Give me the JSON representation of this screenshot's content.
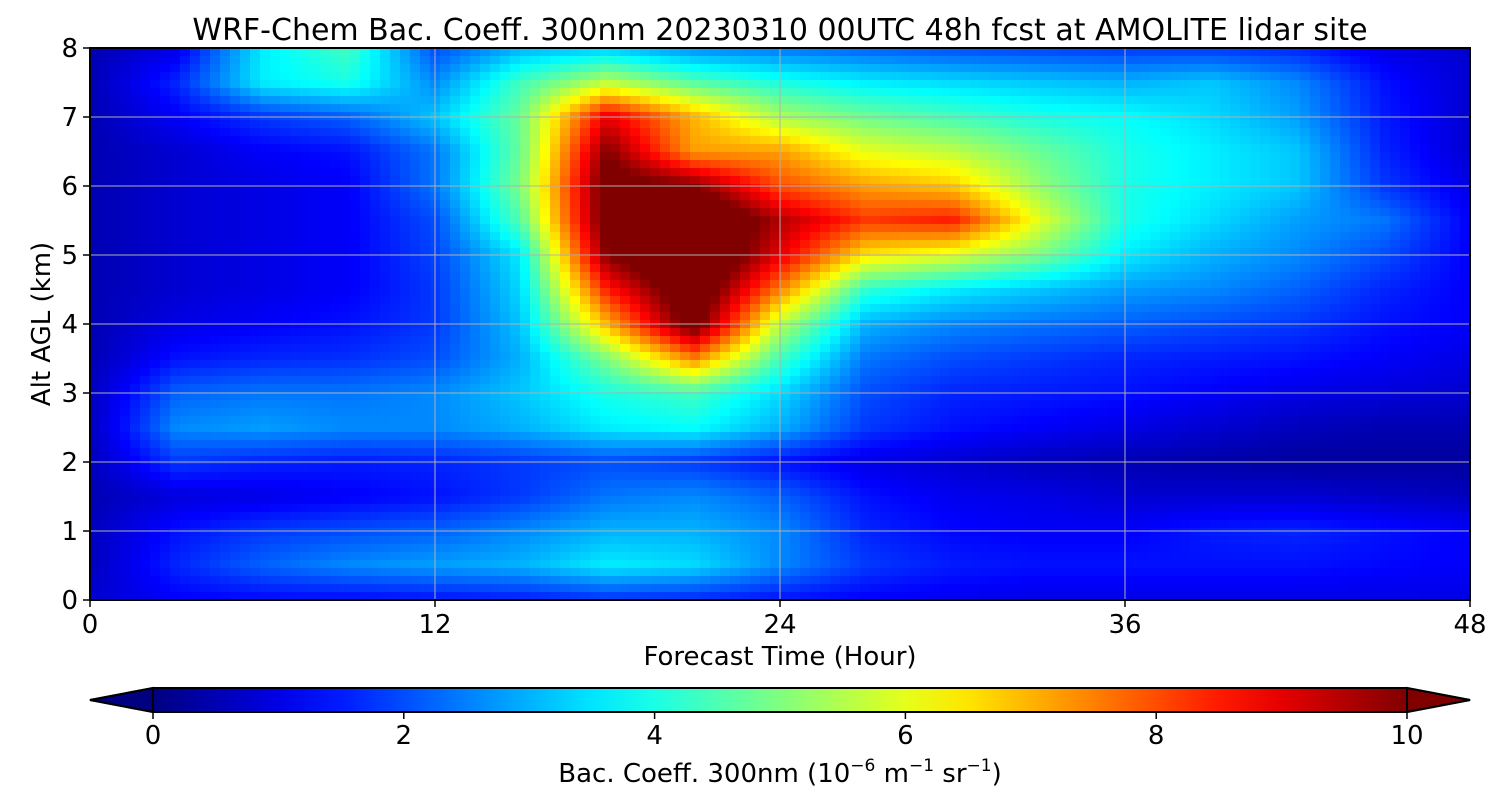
{
  "chart_data": {
    "type": "heatmap",
    "title": "WRF-Chem Bac. Coeff. 300nm  20230310 00UTC 48h fcst at AMOLITE lidar site",
    "xlabel": "Forecast Time (Hour)",
    "ylabel": "Alt AGL (km)",
    "xlim": [
      0,
      48
    ],
    "ylim": [
      0,
      8
    ],
    "x_ticks": [
      0,
      12,
      24,
      36,
      48
    ],
    "y_ticks": [
      0,
      1,
      2,
      3,
      4,
      5,
      6,
      7,
      8
    ],
    "grid": true,
    "colormap": "jet",
    "colorbar": {
      "orientation": "horizontal",
      "placement": "bottom",
      "range": [
        0,
        10
      ],
      "ticks": [
        0,
        2,
        4,
        6,
        8,
        10
      ],
      "extend": "both",
      "label_main": "Bac. Coeff. 300nm  (10",
      "label_exp1": "−6",
      "label_mid": " m",
      "label_exp2": "−1",
      "label_mid2": " sr",
      "label_exp3": "−1",
      "label_end": ")"
    },
    "x": [
      0,
      3,
      6,
      9,
      12,
      15,
      18,
      21,
      24,
      27,
      30,
      33,
      36,
      39,
      42,
      45,
      48
    ],
    "y": [
      0,
      0.5,
      1,
      1.5,
      2,
      2.5,
      3,
      3.5,
      4,
      4.5,
      5,
      5.5,
      6,
      6.5,
      7,
      7.5,
      8
    ],
    "z": [
      [
        0.8,
        1.2,
        1.3,
        1.3,
        1.4,
        1.5,
        1.7,
        1.6,
        1.4,
        1.2,
        1.1,
        1.0,
        1.0,
        1.0,
        1.0,
        1.0,
        1.0
      ],
      [
        0.6,
        1.6,
        2.2,
        2.6,
        2.8,
        3.0,
        3.6,
        3.4,
        2.6,
        1.8,
        1.5,
        1.4,
        1.4,
        1.4,
        1.4,
        1.3,
        1.2
      ],
      [
        0.6,
        1.4,
        1.8,
        2.0,
        2.2,
        2.6,
        3.0,
        3.0,
        2.6,
        1.6,
        1.3,
        1.2,
        1.2,
        1.5,
        1.6,
        1.4,
        1.2
      ],
      [
        0.5,
        0.9,
        1.0,
        1.2,
        1.4,
        1.8,
        2.4,
        2.6,
        2.2,
        1.4,
        1.1,
        1.0,
        0.8,
        0.8,
        0.8,
        0.7,
        0.6
      ],
      [
        0.6,
        1.8,
        1.6,
        1.5,
        1.6,
        1.8,
        2.0,
        1.8,
        1.4,
        1.0,
        0.8,
        0.6,
        0.5,
        0.4,
        0.3,
        0.3,
        0.3
      ],
      [
        0.6,
        2.6,
        2.8,
        2.6,
        2.6,
        3.0,
        3.6,
        3.8,
        3.0,
        1.8,
        1.4,
        1.2,
        1.0,
        0.8,
        0.6,
        0.5,
        0.5
      ],
      [
        0.6,
        2.2,
        2.4,
        2.4,
        2.6,
        3.2,
        4.0,
        4.4,
        3.4,
        2.0,
        1.6,
        1.5,
        1.4,
        1.2,
        1.0,
        0.9,
        0.8
      ],
      [
        0.5,
        1.4,
        1.6,
        1.7,
        2.0,
        3.0,
        5.0,
        7.5,
        4.4,
        2.4,
        2.0,
        1.8,
        1.6,
        1.5,
        1.4,
        1.2,
        1.0
      ],
      [
        0.5,
        1.0,
        1.2,
        1.4,
        1.8,
        3.2,
        7.0,
        10.5,
        5.6,
        3.0,
        2.6,
        2.4,
        2.2,
        2.0,
        1.8,
        1.4,
        1.2
      ],
      [
        0.5,
        0.8,
        1.0,
        1.2,
        1.8,
        3.4,
        8.5,
        11.0,
        7.5,
        4.2,
        3.6,
        3.2,
        2.8,
        2.6,
        2.2,
        1.6,
        1.2
      ],
      [
        0.5,
        0.8,
        1.0,
        1.2,
        1.9,
        3.6,
        10.0,
        11.5,
        9.0,
        6.5,
        6.0,
        5.0,
        3.6,
        3.0,
        2.6,
        2.0,
        1.2
      ],
      [
        0.5,
        0.8,
        1.0,
        1.2,
        2.0,
        4.6,
        10.5,
        11.5,
        9.5,
        8.2,
        8.5,
        6.0,
        4.0,
        3.4,
        2.8,
        2.4,
        1.2
      ],
      [
        0.5,
        0.8,
        1.0,
        1.2,
        2.4,
        5.0,
        10.5,
        10.0,
        8.0,
        7.2,
        6.8,
        5.2,
        4.0,
        3.6,
        3.2,
        1.8,
        1.0
      ],
      [
        0.5,
        0.8,
        1.2,
        1.4,
        2.4,
        4.8,
        10.0,
        7.2,
        7.2,
        6.0,
        5.6,
        4.8,
        4.0,
        3.6,
        3.2,
        1.6,
        0.8
      ],
      [
        0.5,
        1.2,
        1.8,
        2.2,
        3.2,
        4.8,
        9.0,
        7.0,
        5.4,
        4.8,
        4.4,
        4.0,
        3.8,
        3.4,
        2.8,
        1.5,
        0.8
      ],
      [
        0.5,
        1.6,
        3.6,
        4.0,
        2.6,
        4.4,
        5.6,
        4.6,
        4.0,
        3.6,
        3.4,
        3.2,
        3.0,
        3.2,
        2.6,
        1.4,
        0.8
      ],
      [
        0.5,
        1.0,
        3.6,
        4.4,
        2.0,
        3.0,
        3.2,
        2.6,
        2.4,
        2.2,
        2.0,
        1.9,
        1.8,
        1.8,
        1.6,
        1.0,
        0.8
      ]
    ]
  }
}
